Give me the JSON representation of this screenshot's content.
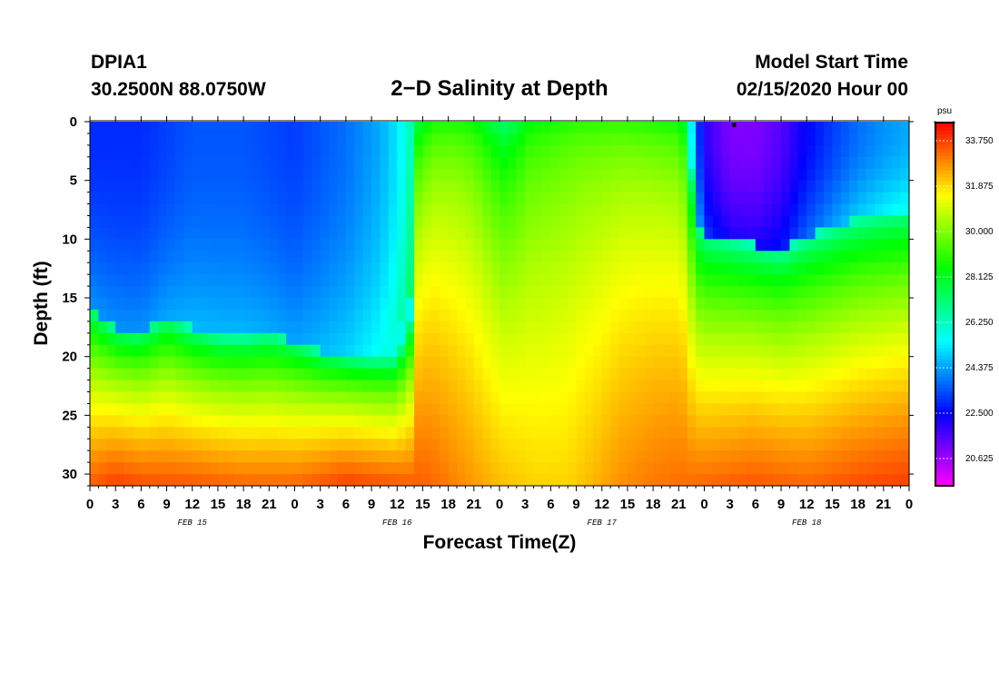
{
  "header": {
    "station": "DPIA1",
    "location": "30.2500N 88.0750W",
    "title": "2−D Salinity at Depth",
    "model_start_label": "Model Start Time",
    "model_start_value": "02/15/2020 Hour 00"
  },
  "chart_data": {
    "type": "heatmap",
    "title": "2-D Salinity at Depth",
    "xlabel": "Forecast Time(Z)",
    "ylabel": "Depth (ft)",
    "x_range_hours": [
      0,
      96
    ],
    "ylim": [
      0,
      31
    ],
    "y_ticks": [
      "0",
      "5",
      "10",
      "15",
      "20",
      "25",
      "30"
    ],
    "x_ticks": [
      "0",
      "3",
      "6",
      "9",
      "12",
      "15",
      "18",
      "21",
      "0",
      "3",
      "6",
      "9",
      "12",
      "15",
      "18",
      "21",
      "0",
      "3",
      "6",
      "9",
      "12",
      "15",
      "18",
      "21",
      "0",
      "3",
      "6",
      "9",
      "12",
      "15",
      "18",
      "21",
      "0"
    ],
    "date_labels": [
      {
        "hour": 12,
        "label": "FEB 15"
      },
      {
        "hour": 36,
        "label": "FEB 16"
      },
      {
        "hour": 60,
        "label": "FEB 17"
      },
      {
        "hour": 84,
        "label": "FEB 18"
      }
    ],
    "colorbar": {
      "unit": "psu",
      "min": 19.5,
      "max": 34.5,
      "ticks": [
        "33.750",
        "31.875",
        "30.000",
        "28.125",
        "26.250",
        "24.375",
        "22.500",
        "20.625"
      ]
    },
    "surface_marker_hour": 75.5,
    "halocline_depth_ft": [
      [
        0,
        15.5
      ],
      [
        3,
        17.5
      ],
      [
        6,
        17.8
      ],
      [
        9,
        16.5
      ],
      [
        12,
        17.6
      ],
      [
        15,
        18.2
      ],
      [
        18,
        18.3
      ],
      [
        21,
        18.0
      ],
      [
        24,
        18.6
      ],
      [
        27,
        19.5
      ],
      [
        30,
        20.0
      ],
      [
        33,
        20.2
      ],
      [
        36,
        20.2
      ],
      [
        37.5,
        17.0
      ],
      [
        38,
        0
      ],
      [
        47,
        0
      ],
      [
        51,
        0
      ],
      [
        54,
        0
      ],
      [
        61,
        0
      ],
      [
        65,
        0
      ],
      [
        69,
        0
      ],
      [
        70,
        0
      ],
      [
        71,
        8.0
      ],
      [
        72,
        9.5
      ],
      [
        75,
        10.0
      ],
      [
        78,
        10.5
      ],
      [
        81,
        11.0
      ],
      [
        84,
        9.8
      ],
      [
        87,
        9.0
      ],
      [
        90,
        8.2
      ],
      [
        93,
        7.8
      ],
      [
        96,
        7.5
      ]
    ],
    "surface_salinity_psu": [
      [
        0,
        23.0
      ],
      [
        6,
        23.0
      ],
      [
        12,
        23.5
      ],
      [
        18,
        23.5
      ],
      [
        24,
        23.2
      ],
      [
        30,
        23.8
      ],
      [
        34,
        24.5
      ],
      [
        36,
        25.2
      ],
      [
        37.5,
        26.3
      ],
      [
        38.5,
        27.4
      ],
      [
        40,
        28.4
      ],
      [
        43,
        28.6
      ],
      [
        45,
        28.3
      ],
      [
        47,
        27.4
      ],
      [
        48.5,
        26.9
      ],
      [
        50,
        27.4
      ],
      [
        51.5,
        28.2
      ],
      [
        54,
        28.5
      ],
      [
        57,
        28.8
      ],
      [
        60,
        28.8
      ],
      [
        63,
        28.8
      ],
      [
        66,
        28.6
      ],
      [
        68.5,
        28.4
      ],
      [
        70,
        27.5
      ],
      [
        70.7,
        24.5
      ],
      [
        72,
        22.0
      ],
      [
        75,
        21.0
      ],
      [
        78,
        21.0
      ],
      [
        81,
        21.5
      ],
      [
        84,
        22.5
      ],
      [
        87,
        23.2
      ],
      [
        90,
        23.8
      ],
      [
        93,
        24.2
      ],
      [
        96,
        24.5
      ]
    ],
    "bottom_salinity_psu": [
      [
        0,
        33.4
      ],
      [
        3,
        33.8
      ],
      [
        6,
        33.6
      ],
      [
        12,
        33.5
      ],
      [
        18,
        33.3
      ],
      [
        24,
        33.3
      ],
      [
        30,
        33.8
      ],
      [
        36,
        33.5
      ],
      [
        40,
        33.3
      ],
      [
        44,
        32.8
      ],
      [
        48,
        32.3
      ],
      [
        52,
        32.0
      ],
      [
        56,
        32.0
      ],
      [
        60,
        32.5
      ],
      [
        62,
        32.8
      ],
      [
        66,
        33.1
      ],
      [
        72,
        33.3
      ],
      [
        78,
        33.5
      ],
      [
        84,
        33.3
      ],
      [
        90,
        33.6
      ],
      [
        96,
        33.8
      ]
    ]
  }
}
